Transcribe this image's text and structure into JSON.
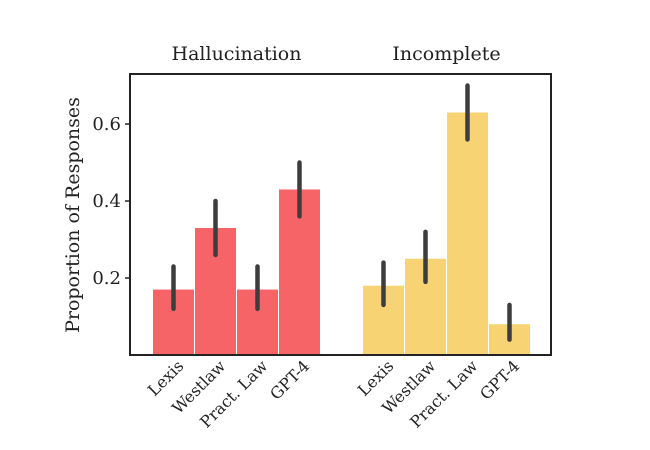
{
  "chart_data": {
    "type": "bar",
    "ylabel": "Proportion of Responses",
    "ylim": [
      0,
      0.73
    ],
    "yticks": [
      0.2,
      0.4,
      0.6
    ],
    "ytick_labels": [
      "0.2",
      "0.4",
      "0.6"
    ],
    "grid": false,
    "groups": [
      {
        "title": "Hallucination",
        "color": "#f76467",
        "categories": [
          "Lexis",
          "Westlaw",
          "Pract. Law",
          "GPT-4"
        ],
        "values": [
          0.17,
          0.33,
          0.17,
          0.43
        ],
        "error_low": [
          0.12,
          0.26,
          0.12,
          0.36
        ],
        "error_high": [
          0.23,
          0.4,
          0.23,
          0.5
        ]
      },
      {
        "title": "Incomplete",
        "color": "#f8d374",
        "categories": [
          "Lexis",
          "Westlaw",
          "Pract. Law",
          "GPT-4"
        ],
        "values": [
          0.18,
          0.25,
          0.63,
          0.08
        ],
        "error_low": [
          0.13,
          0.19,
          0.56,
          0.04
        ],
        "error_high": [
          0.24,
          0.32,
          0.7,
          0.13
        ]
      }
    ]
  }
}
